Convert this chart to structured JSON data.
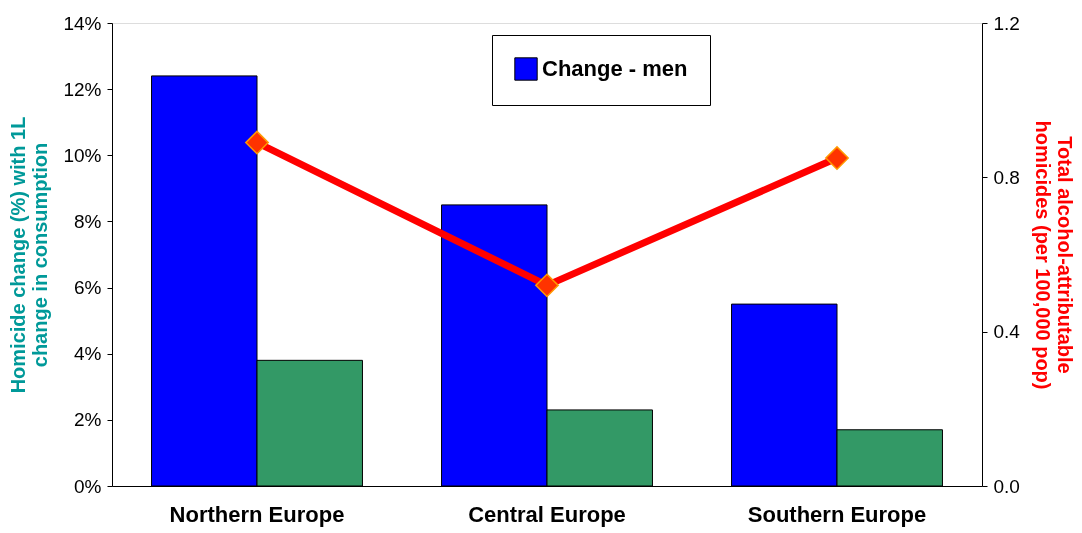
{
  "chart_data": {
    "type": "bar",
    "categories": [
      "Northern Europe",
      "Central Europe",
      "Southern Europe"
    ],
    "ylabel": "Homicide change (%) with 1L\nchange  in consumption",
    "y2label": "Total alcohol-attributable\nhomicides (per 100,000 pop)",
    "series": [
      {
        "name": "Change - men",
        "color": "#0000ff",
        "values": [
          12.4,
          8.5,
          5.5
        ]
      },
      {
        "color": "#339966",
        "values": [
          3.8,
          2.3,
          1.7
        ]
      },
      {
        "type": "line",
        "axis": "y2",
        "color": "#ff0000",
        "marker": "diamond",
        "values": [
          0.89,
          0.52,
          0.85
        ]
      }
    ],
    "ylim": [
      0,
      14
    ],
    "yticks": [
      {
        "value": 0,
        "label": "0%"
      },
      {
        "value": 2,
        "label": "2%"
      },
      {
        "value": 4,
        "label": "4%"
      },
      {
        "value": 6,
        "label": "6%"
      },
      {
        "value": 8,
        "label": "8%"
      },
      {
        "value": 10,
        "label": "10%"
      },
      {
        "value": 12,
        "label": "12%"
      },
      {
        "value": 14,
        "label": "14%"
      }
    ],
    "y2lim": [
      0,
      1.2
    ],
    "y2ticks": [
      {
        "value": 0,
        "label": "0.0"
      },
      {
        "value": 0.4,
        "label": "0.4"
      },
      {
        "value": 0.8,
        "label": "0.8"
      },
      {
        "value": 1.2,
        "label": "1.2"
      }
    ],
    "legend": "top",
    "grid": false
  }
}
